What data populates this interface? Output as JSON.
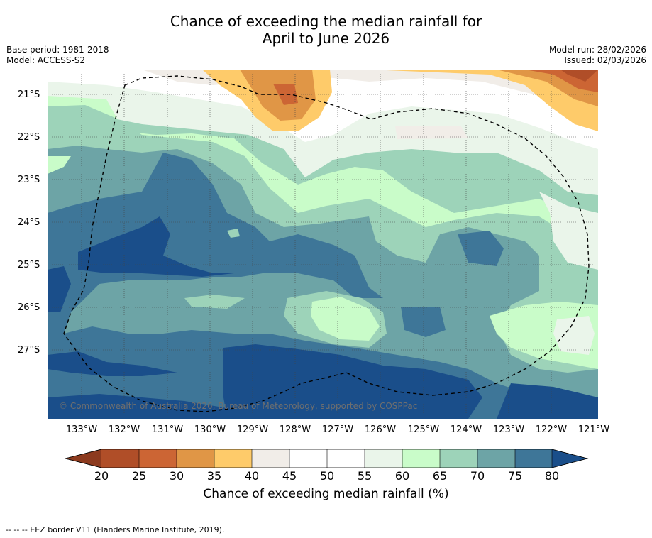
{
  "title_line1": "Chance of exceeding the median rainfall for",
  "title_line2": "April to June 2026",
  "base_period": "Base period: 1981-2018",
  "model": "Model: ACCESS-S2",
  "model_run": "Model run: 28/02/2026",
  "issued": "Issued: 02/03/2026",
  "copyright": "© Commonwealth of Australia 2026, Bureau of Meteorology, supported by COSPPac",
  "lat_labels": [
    "21°S",
    "22°S",
    "23°S",
    "24°S",
    "25°S",
    "26°S",
    "27°S"
  ],
  "lon_labels": [
    "133°W",
    "132°W",
    "131°W",
    "130°W",
    "129°W",
    "128°W",
    "127°W",
    "126°W",
    "125°W",
    "124°W",
    "123°W",
    "122°W",
    "121°W"
  ],
  "colorbar": {
    "ticks": [
      "20",
      "25",
      "30",
      "35",
      "40",
      "45",
      "50",
      "55",
      "60",
      "65",
      "70",
      "75",
      "80"
    ],
    "label": "Chance of exceeding median rainfall (%)",
    "colors": [
      "#8c3a1e",
      "#b04e28",
      "#cc6534",
      "#e09646",
      "#fecb6a",
      "#f1ede8",
      "#ffffff",
      "#ffffff",
      "#eaf5ea",
      "#c9fcc9",
      "#9dd3b9",
      "#6da4a6",
      "#3e7698",
      "#1a4e8a"
    ]
  },
  "footer": "--  --  -- EEZ border V11 (Flanders Marine Institute, 2019)."
}
